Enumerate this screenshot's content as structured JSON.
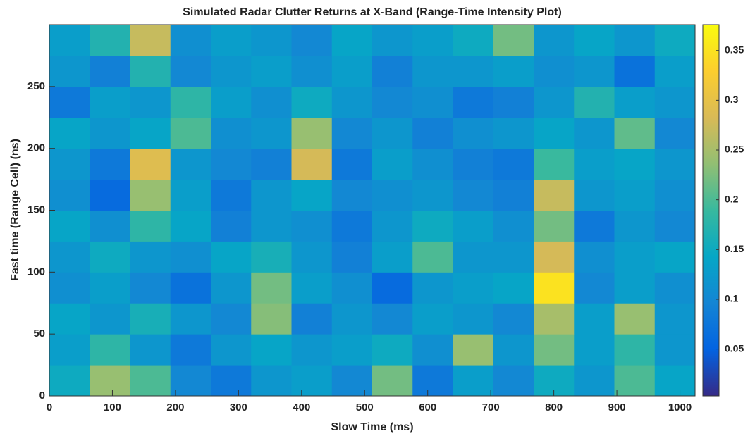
{
  "chart_data": {
    "type": "heatmap",
    "title": "Simulated Radar Clutter Returns at X-Band (Range-Time Intensity Plot)",
    "x_label": "Slow Time (ms)",
    "y_label": "Fast time (Range Cell) (ns)",
    "x_bins": [
      0,
      64,
      128,
      192,
      256,
      320,
      384,
      448,
      512,
      576,
      640,
      704,
      768,
      832,
      896,
      960,
      1024
    ],
    "y_bins": [
      0,
      25,
      50,
      75,
      100,
      125,
      150,
      175,
      200,
      225,
      250,
      275,
      300
    ],
    "values": [
      [
        0.15,
        0.24,
        0.2,
        0.1,
        0.08,
        0.12,
        0.13,
        0.1,
        0.22,
        0.08,
        0.13,
        0.1,
        0.15,
        0.12,
        0.2,
        0.14
      ],
      [
        0.13,
        0.18,
        0.12,
        0.08,
        0.12,
        0.14,
        0.12,
        0.13,
        0.15,
        0.11,
        0.24,
        0.12,
        0.22,
        0.13,
        0.18,
        0.12
      ],
      [
        0.14,
        0.12,
        0.16,
        0.12,
        0.1,
        0.23,
        0.09,
        0.12,
        0.1,
        0.13,
        0.12,
        0.1,
        0.25,
        0.13,
        0.24,
        0.12
      ],
      [
        0.11,
        0.13,
        0.1,
        0.07,
        0.12,
        0.22,
        0.13,
        0.11,
        0.06,
        0.12,
        0.13,
        0.14,
        0.35,
        0.1,
        0.13,
        0.11
      ],
      [
        0.12,
        0.15,
        0.12,
        0.11,
        0.14,
        0.16,
        0.12,
        0.09,
        0.13,
        0.2,
        0.12,
        0.12,
        0.28,
        0.11,
        0.13,
        0.14
      ],
      [
        0.14,
        0.11,
        0.18,
        0.14,
        0.09,
        0.12,
        0.11,
        0.08,
        0.12,
        0.15,
        0.13,
        0.11,
        0.22,
        0.08,
        0.12,
        0.1
      ],
      [
        0.11,
        0.06,
        0.24,
        0.13,
        0.08,
        0.12,
        0.14,
        0.1,
        0.11,
        0.12,
        0.1,
        0.09,
        0.27,
        0.12,
        0.13,
        0.11
      ],
      [
        0.12,
        0.08,
        0.29,
        0.12,
        0.1,
        0.09,
        0.28,
        0.08,
        0.13,
        0.11,
        0.09,
        0.08,
        0.19,
        0.13,
        0.14,
        0.12
      ],
      [
        0.14,
        0.12,
        0.14,
        0.2,
        0.11,
        0.12,
        0.24,
        0.1,
        0.12,
        0.09,
        0.11,
        0.12,
        0.14,
        0.12,
        0.21,
        0.1
      ],
      [
        0.08,
        0.13,
        0.12,
        0.18,
        0.13,
        0.11,
        0.15,
        0.12,
        0.1,
        0.11,
        0.08,
        0.09,
        0.12,
        0.17,
        0.13,
        0.12
      ],
      [
        0.12,
        0.09,
        0.17,
        0.1,
        0.12,
        0.13,
        0.11,
        0.13,
        0.09,
        0.12,
        0.12,
        0.13,
        0.11,
        0.12,
        0.07,
        0.13
      ],
      [
        0.13,
        0.17,
        0.27,
        0.11,
        0.13,
        0.12,
        0.1,
        0.14,
        0.12,
        0.13,
        0.15,
        0.22,
        0.12,
        0.14,
        0.12,
        0.15
      ]
    ],
    "xlim": [
      0,
      1024
    ],
    "xticks": [
      0,
      100,
      200,
      300,
      400,
      500,
      600,
      700,
      800,
      900,
      1000
    ],
    "ylim": [
      0,
      300
    ],
    "yticks": [
      0,
      50,
      100,
      150,
      200,
      250
    ],
    "clim": [
      0.003,
      0.376
    ],
    "cticks": [
      0.05,
      0.1,
      0.15,
      0.2,
      0.25,
      0.3,
      0.35
    ],
    "colormap": [
      "#352a87",
      "#0363e1",
      "#1485d4",
      "#06a7c6",
      "#38b99e",
      "#92bf73",
      "#d9ba56",
      "#fcce2e",
      "#f9fb0e"
    ]
  }
}
